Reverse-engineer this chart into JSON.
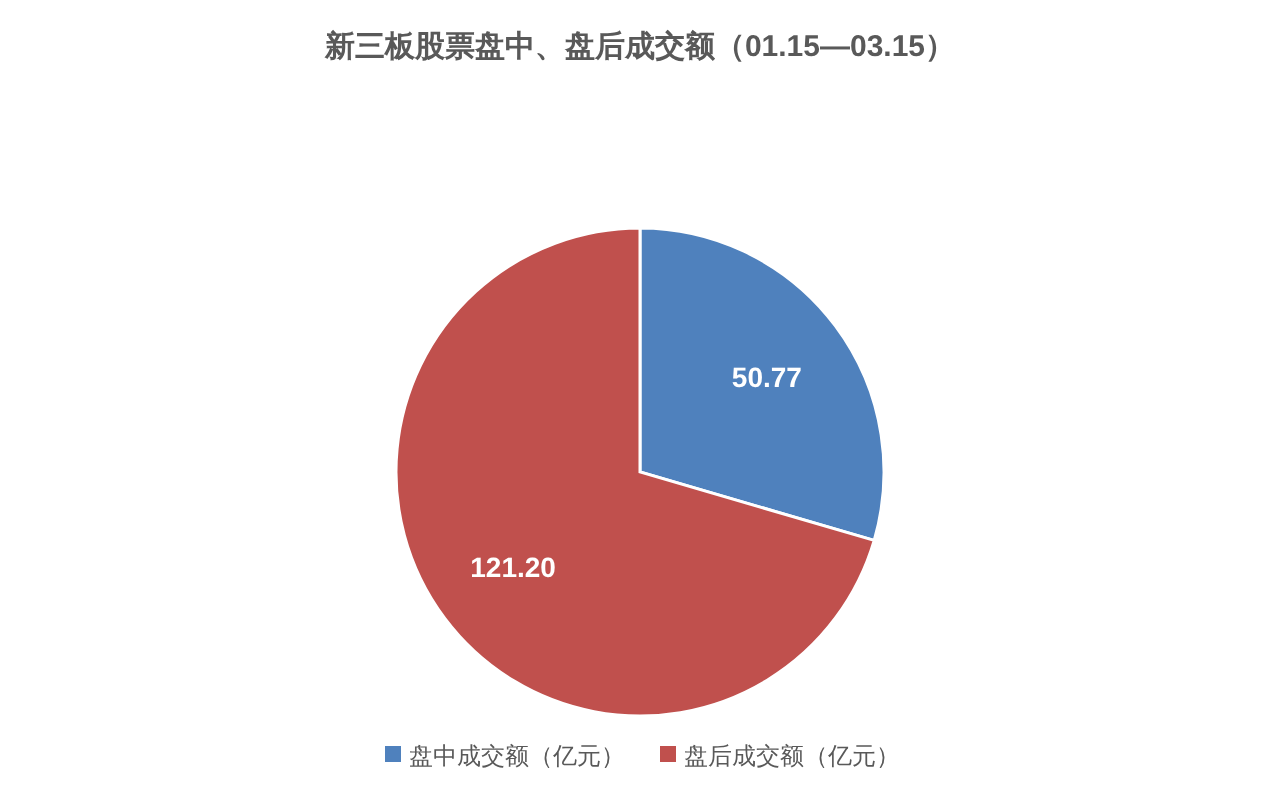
{
  "chart_data": {
    "type": "pie",
    "title": "新三板股票盘中、盘后成交额（01.15—03.15）",
    "categories": [
      "盘中成交额（亿元）",
      "盘后成交额（亿元）"
    ],
    "values": [
      50.77,
      121.2
    ],
    "value_labels": [
      "50.77",
      "121.20"
    ],
    "colors": [
      "#4f81bd",
      "#c0504d"
    ],
    "legend": "bottom"
  }
}
